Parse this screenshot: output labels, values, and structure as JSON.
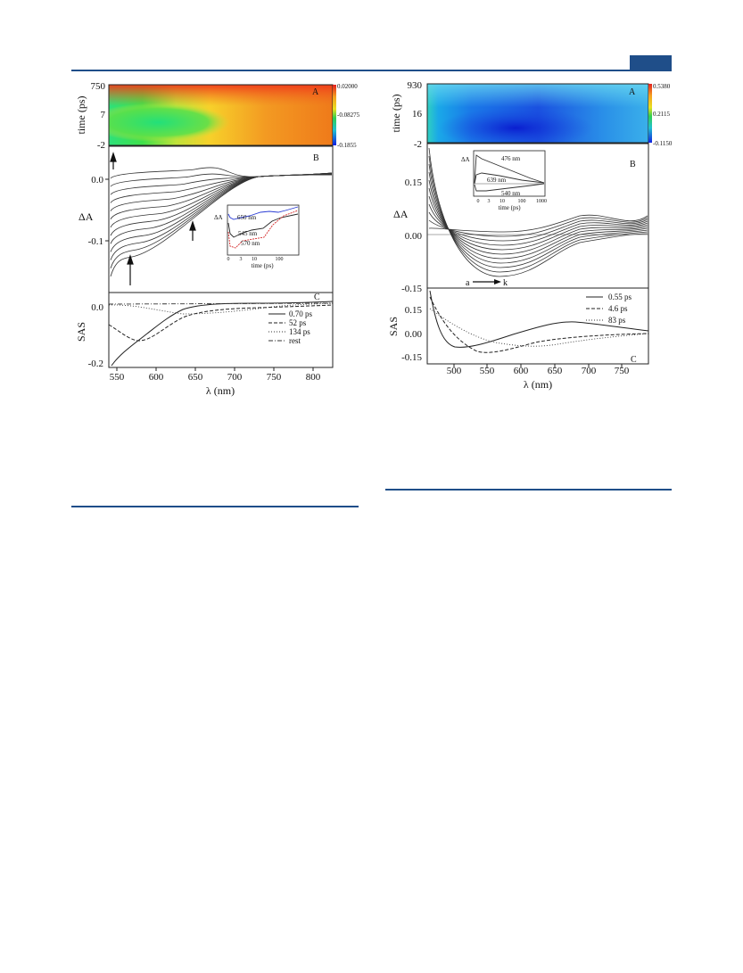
{
  "left_figure": {
    "panel_a": {
      "letter": "A",
      "y_ticks": [
        "750",
        "7",
        "-2"
      ],
      "ylabel": "time (ps)",
      "colorbar_ticks": [
        "0.02000",
        "-0.08275",
        "-0.1855"
      ]
    },
    "panel_b": {
      "letter": "B",
      "y_ticks": [
        "0.0",
        "-0.1"
      ],
      "ylabel": "ΔA",
      "inset": {
        "ylabel": "ΔA",
        "labels": [
          {
            "text": "650 nm",
            "color": "#2a3cd4"
          },
          {
            "text": "545 nm",
            "color": "#222222"
          },
          {
            "text": "570 nm",
            "color": "#d42a2a"
          }
        ],
        "x_ticks": [
          "0",
          "3",
          "10",
          "100"
        ],
        "xlabel": "time (ps)"
      }
    },
    "panel_c": {
      "letter": "C",
      "y_ticks": [
        "0.0",
        "-0.2"
      ],
      "ylabel": "SAS",
      "x_ticks": [
        "550",
        "600",
        "650",
        "700",
        "750",
        "800"
      ],
      "xlabel": "λ (nm)",
      "legend": [
        "0.70 ps",
        "52 ps",
        "134 ps",
        "rest"
      ]
    }
  },
  "right_figure": {
    "panel_a": {
      "letter": "A",
      "y_ticks": [
        "930",
        "16",
        "-2"
      ],
      "ylabel": "time (ps)",
      "colorbar_ticks": [
        "0.5380",
        "0.2115",
        "-0.1150"
      ]
    },
    "panel_b": {
      "letter": "B",
      "y_ticks": [
        "0.15",
        "0.00",
        "-0.15"
      ],
      "ylabel": "ΔA",
      "arrow_labels": [
        "a",
        "k"
      ],
      "inset": {
        "ylabel": "ΔA",
        "labels": [
          "476 nm",
          "639 nm",
          "540 nm"
        ],
        "x_ticks": [
          "0",
          "3",
          "10",
          "100",
          "1000"
        ],
        "xlabel": "time (ps)"
      }
    },
    "panel_c": {
      "letter": "C",
      "y_ticks": [
        "0.15",
        "0.00",
        "-0.15"
      ],
      "ylabel": "SAS",
      "x_ticks": [
        "500",
        "550",
        "600",
        "650",
        "700",
        "750"
      ],
      "xlabel": "λ (nm)",
      "legend": [
        "0.55 ps",
        "4.6 ps",
        "83 ps"
      ]
    }
  }
}
